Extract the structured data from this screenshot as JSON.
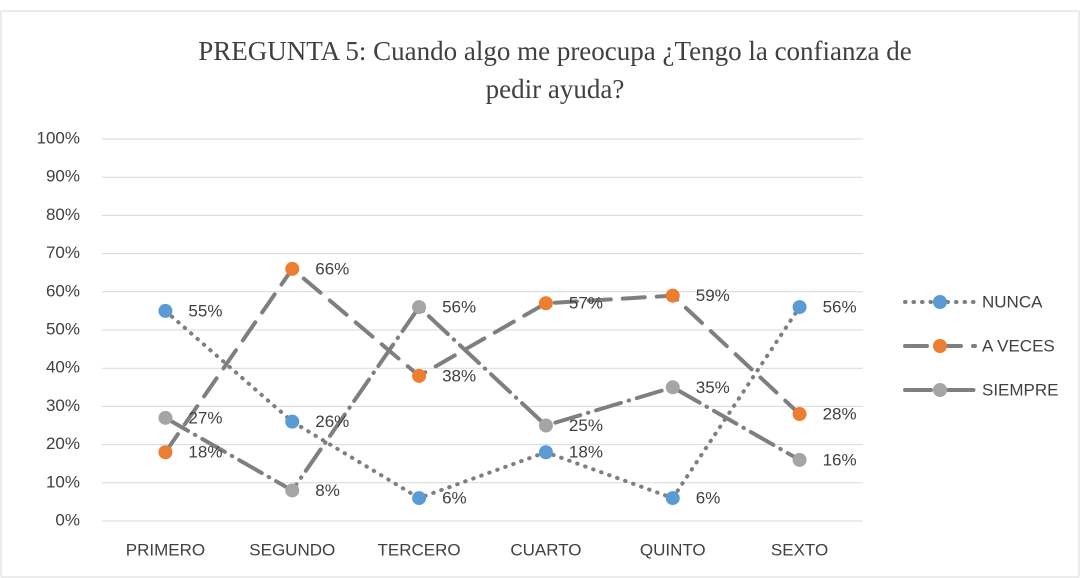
{
  "chart_data": {
    "type": "line",
    "title": [
      "PREGUNTA 5: Cuando algo me preocupa ¿Tengo la confianza de",
      "pedir ayuda?"
    ],
    "categories": [
      "PRIMERO",
      "SEGUNDO",
      "TERCERO",
      "CUARTO",
      "QUINTO",
      "SEXTO"
    ],
    "line_color": "#7f7f7f",
    "series": [
      {
        "name": "NUNCA",
        "color": "#5b9bd5",
        "dash": "dot",
        "values": [
          55,
          26,
          6,
          18,
          6,
          56
        ],
        "value_labels": [
          "55%",
          "26%",
          "6%",
          "18%",
          "6%",
          "56%"
        ]
      },
      {
        "name": "A VECES",
        "color": "#ed7d31",
        "dash": "dash",
        "values": [
          18,
          66,
          38,
          57,
          59,
          28
        ],
        "value_labels": [
          "18%",
          "66%",
          "38%",
          "57%",
          "59%",
          "28%"
        ]
      },
      {
        "name": "SIEMPRE",
        "color": "#a5a5a5",
        "dash": "dashdot",
        "values": [
          27,
          8,
          56,
          25,
          35,
          16
        ],
        "value_labels": [
          "27%",
          "8%",
          "56%",
          "25%",
          "35%",
          "16%"
        ]
      }
    ],
    "ylim": [
      0,
      100
    ],
    "yticks": [
      {
        "value": 0,
        "label": "0%"
      },
      {
        "value": 10,
        "label": "10%"
      },
      {
        "value": 20,
        "label": "20%"
      },
      {
        "value": 30,
        "label": "30%"
      },
      {
        "value": 40,
        "label": "40%"
      },
      {
        "value": 50,
        "label": "50%"
      },
      {
        "value": 60,
        "label": "60%"
      },
      {
        "value": 70,
        "label": "70%"
      },
      {
        "value": 80,
        "label": "80%"
      },
      {
        "value": 90,
        "label": "90%"
      },
      {
        "value": 100,
        "label": "100%"
      }
    ],
    "grid": true,
    "legend": "right"
  }
}
